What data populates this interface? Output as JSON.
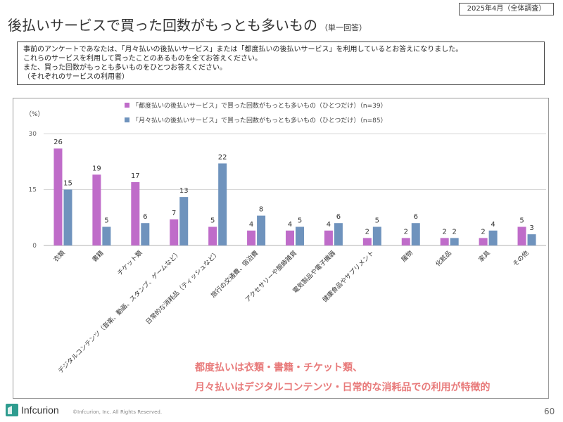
{
  "header": {
    "date_note": "2025年4月（全体調査）",
    "title": "後払いサービスで買った回数がもっとも多いもの",
    "title_note": "（単一回答）"
  },
  "question": {
    "lines": [
      "事前のアンケートであなたは、「月々払いの後払いサービス」または「都度払いの後払いサービス」を利用しているとお答えになりました。",
      "これらのサービスを利用して買ったことのあるものを全てお答えください。",
      "また、買った回数がもっとも多いものをひとつお答えください。",
      "（それぞれのサービスの利用者）"
    ]
  },
  "chart_data": {
    "type": "bar",
    "unit_label": "（%）",
    "ylim": [
      0,
      30
    ],
    "yticks": [
      0,
      15,
      30
    ],
    "grid": true,
    "legend_position": "top",
    "categories": [
      "衣類",
      "書籍",
      "チケット類",
      "デジタルコンテンツ（音楽、動画、スタンプ、ゲームなど）",
      "日常的な消耗品（ティッシュなど）",
      "旅行の交通費、宿泊費",
      "アクセサリーや服飾雑貨",
      "電気製品や電子機器",
      "健康食品やサプリメント",
      "履物",
      "化粧品",
      "家具",
      "その他"
    ],
    "series": [
      {
        "name": "「都度払いの後払いサービス」で買った回数がもっとも多いもの（ひとつだけ）（n=39）",
        "color": "#bf6cc9",
        "values": [
          26,
          19,
          17,
          7,
          5,
          4,
          4,
          4,
          2,
          2,
          2,
          2,
          5
        ]
      },
      {
        "name": "「月々払いの後払いサービス」で買った回数がもっとも多いもの（ひとつだけ）（n=85）",
        "color": "#6f93bd",
        "values": [
          15,
          5,
          6,
          13,
          22,
          8,
          5,
          6,
          5,
          6,
          2,
          4,
          3
        ]
      }
    ]
  },
  "conclusion": {
    "line1": "都度払いは衣類・書籍・チケット類、",
    "line2": "月々払いはデジタルコンテンツ・日常的な消耗品での利用が特徴的",
    "color": "#e87a7a"
  },
  "footer": {
    "logo_text": "Infcurion",
    "logo_color": "#2e9c8f",
    "copyright": "©Infcurion, Inc. All Rights Reserved.",
    "page": "60"
  }
}
